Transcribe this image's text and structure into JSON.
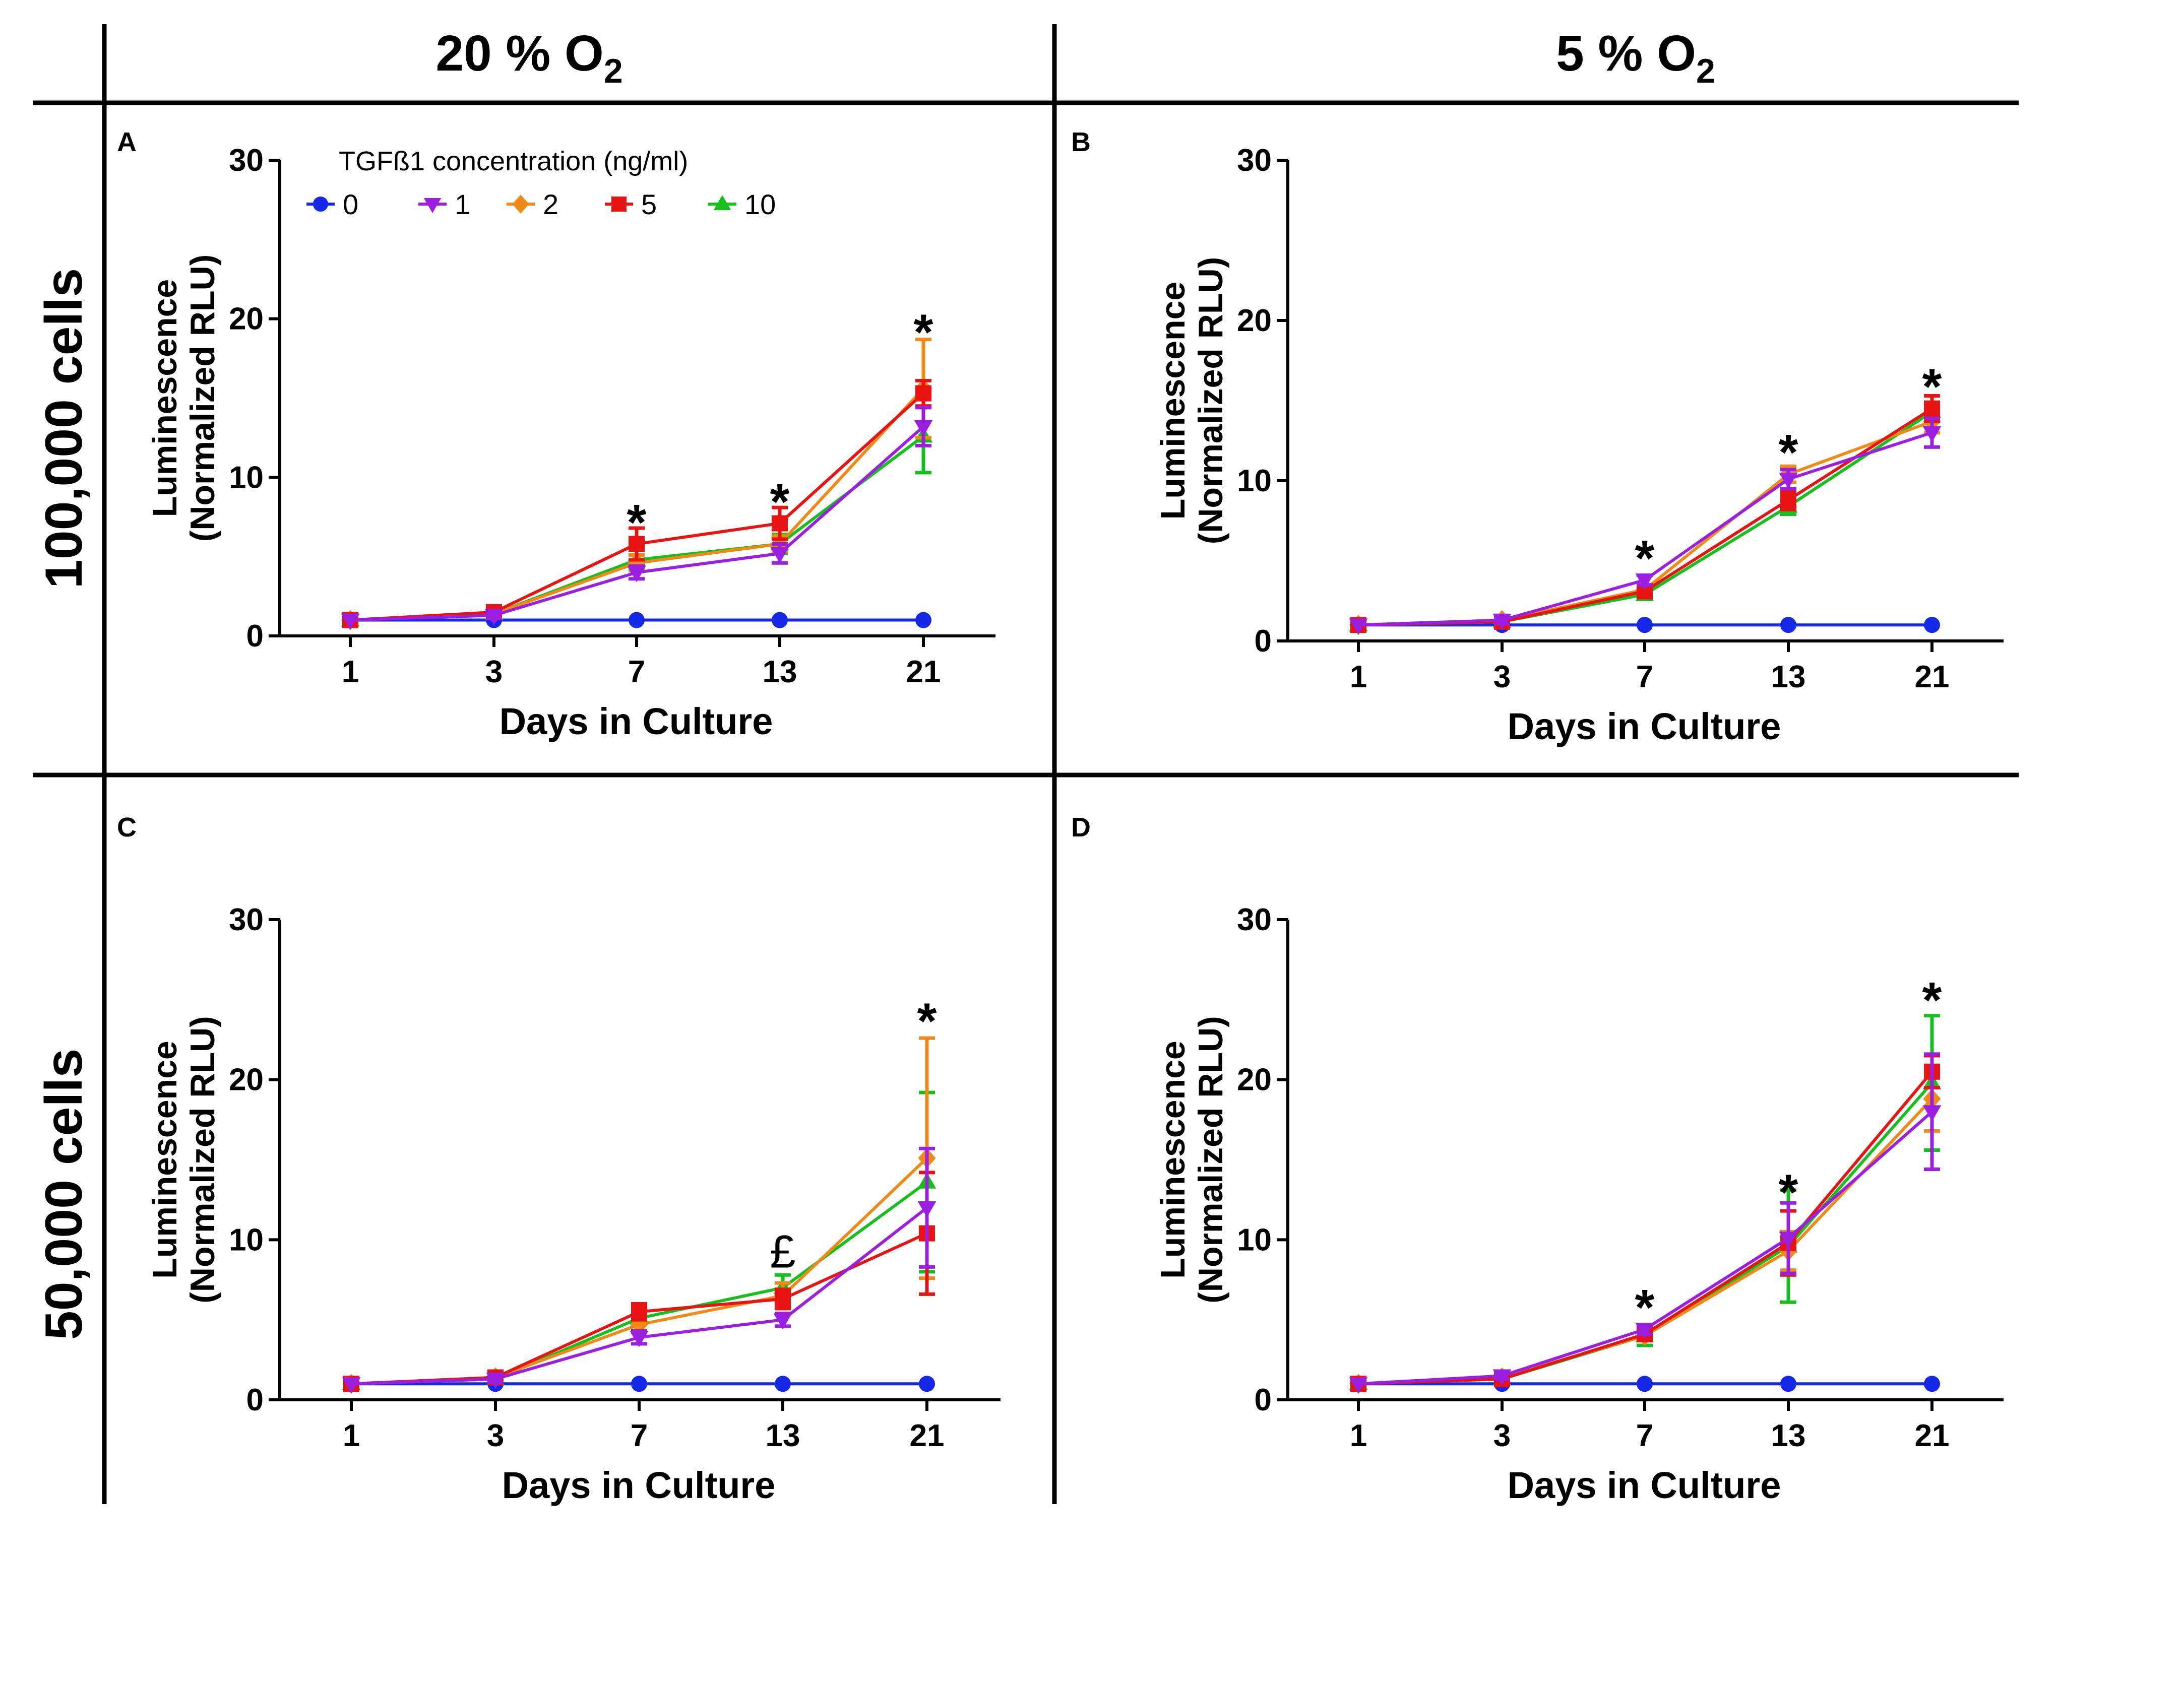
{
  "figure": {
    "col_headers": [
      {
        "main": "20 % O",
        "sub": "2"
      },
      {
        "main": "5 % O",
        "sub": "2"
      }
    ],
    "row_headers": [
      "100,000 cells",
      "50,000 cells"
    ]
  },
  "legend": {
    "title": "TGFß1 concentration (ng/ml)",
    "entries": [
      {
        "label": "0",
        "color": "#1428e6",
        "marker": "circle"
      },
      {
        "label": "1",
        "color": "#9b1fe0",
        "marker": "triangle-down"
      },
      {
        "label": "2",
        "color": "#f08a16",
        "marker": "diamond"
      },
      {
        "label": "5",
        "color": "#e81414",
        "marker": "square"
      },
      {
        "label": "10",
        "color": "#16c01c",
        "marker": "triangle-up"
      }
    ]
  },
  "chart_data": [
    {
      "type": "line",
      "panel": "A",
      "title": "",
      "xlabel": "Days in Culture",
      "ylabel": [
        "Luminescence",
        "(Normalized RLU)"
      ],
      "categories": [
        "1",
        "3",
        "7",
        "13",
        "21"
      ],
      "ylim": [
        0,
        30
      ],
      "yticks": [
        0,
        10,
        20,
        30
      ],
      "series": [
        {
          "name": "0",
          "values": [
            1,
            1,
            1,
            1,
            1
          ],
          "err": [
            0.1,
            0.1,
            0.1,
            0.1,
            0.1
          ]
        },
        {
          "name": "1",
          "values": [
            1,
            1.3,
            4,
            5.2,
            13.2
          ],
          "err": [
            0.1,
            0.2,
            0.4,
            0.6,
            1.2
          ]
        },
        {
          "name": "2",
          "values": [
            1,
            1.4,
            4.6,
            5.8,
            15.6
          ],
          "err": [
            0.1,
            0.2,
            0.5,
            0.5,
            3.1
          ]
        },
        {
          "name": "5",
          "values": [
            1,
            1.5,
            5.8,
            7.1,
            15.3
          ],
          "err": [
            0.1,
            0.2,
            1.0,
            1.0,
            0.8
          ]
        },
        {
          "name": "10",
          "values": [
            1,
            1.4,
            4.8,
            5.8,
            12.6
          ],
          "err": [
            0.1,
            0.2,
            0.6,
            0.6,
            2.3
          ]
        }
      ],
      "annotations": [
        {
          "text": "*",
          "x": "7",
          "y": 7.6
        },
        {
          "text": "*",
          "x": "13",
          "y": 8.9
        },
        {
          "text": "*",
          "x": "21",
          "y": 19.6
        }
      ]
    },
    {
      "type": "line",
      "panel": "B",
      "title": "",
      "xlabel": "Days in Culture",
      "ylabel": [
        "Luminescence",
        "(Normalized RLU)"
      ],
      "categories": [
        "1",
        "3",
        "7",
        "13",
        "21"
      ],
      "ylim": [
        0,
        30
      ],
      "yticks": [
        0,
        10,
        20,
        30
      ],
      "series": [
        {
          "name": "0",
          "values": [
            1,
            1,
            1,
            1,
            1
          ],
          "err": [
            0.1,
            0.1,
            0.1,
            0.1,
            0.1
          ]
        },
        {
          "name": "1",
          "values": [
            1,
            1.3,
            3.8,
            10.1,
            13
          ],
          "err": [
            0.1,
            0.2,
            0.3,
            0.6,
            0.9
          ]
        },
        {
          "name": "2",
          "values": [
            1,
            1.3,
            3.2,
            10.4,
            13.7
          ],
          "err": [
            0.1,
            0.2,
            0.3,
            0.5,
            0.7
          ]
        },
        {
          "name": "5",
          "values": [
            1,
            1.2,
            3.1,
            8.8,
            14.5
          ],
          "err": [
            0.1,
            0.2,
            0.3,
            0.6,
            0.8
          ]
        },
        {
          "name": "10",
          "values": [
            1,
            1.2,
            2.9,
            8.4,
            14.3
          ],
          "err": [
            0.1,
            0.2,
            0.3,
            0.5,
            0.6
          ]
        }
      ],
      "annotations": [
        {
          "text": "*",
          "x": "7",
          "y": 5.6
        },
        {
          "text": "*",
          "x": "13",
          "y": 12.2
        },
        {
          "text": "*",
          "x": "21",
          "y": 16.3
        }
      ]
    },
    {
      "type": "line",
      "panel": "C",
      "title": "",
      "xlabel": "Days in Culture",
      "ylabel": [
        "Luminescence",
        "(Normalized RLU)"
      ],
      "categories": [
        "1",
        "3",
        "7",
        "13",
        "21"
      ],
      "ylim": [
        0,
        30
      ],
      "yticks": [
        0,
        10,
        20,
        30
      ],
      "series": [
        {
          "name": "0",
          "values": [
            1,
            1,
            1,
            1,
            1
          ],
          "err": [
            0.1,
            0.1,
            0.1,
            0.1,
            0.1
          ]
        },
        {
          "name": "1",
          "values": [
            1,
            1.3,
            3.9,
            5,
            12
          ],
          "err": [
            0.1,
            0.2,
            0.4,
            0.4,
            3.7
          ]
        },
        {
          "name": "2",
          "values": [
            1,
            1.4,
            4.7,
            6.5,
            15.1
          ],
          "err": [
            0.1,
            0.2,
            0.5,
            0.8,
            7.5
          ]
        },
        {
          "name": "5",
          "values": [
            1,
            1.4,
            5.5,
            6.3,
            10.4
          ],
          "err": [
            0.1,
            0.2,
            0.5,
            0.6,
            3.8
          ]
        },
        {
          "name": "10",
          "values": [
            1,
            1.3,
            5.1,
            7,
            13.6
          ],
          "err": [
            0.1,
            0.2,
            0.4,
            0.8,
            5.6
          ]
        }
      ],
      "annotations": [
        {
          "text": "£",
          "x": "13",
          "y": 9.2
        },
        {
          "text": "*",
          "x": "21",
          "y": 24.1
        }
      ]
    },
    {
      "type": "line",
      "panel": "D",
      "title": "",
      "xlabel": "Days in Culture",
      "ylabel": [
        "Luminescence",
        "(Normalized RLU)"
      ],
      "categories": [
        "1",
        "3",
        "7",
        "13",
        "21"
      ],
      "ylim": [
        0,
        30
      ],
      "yticks": [
        0,
        10,
        20,
        30
      ],
      "series": [
        {
          "name": "0",
          "values": [
            1,
            1,
            1,
            1,
            1
          ],
          "err": [
            0.1,
            0.1,
            0.1,
            0.1,
            0.1
          ]
        },
        {
          "name": "1",
          "values": [
            1,
            1.5,
            4.4,
            10.1,
            18
          ],
          "err": [
            0.1,
            0.2,
            0.3,
            2.2,
            3.6
          ]
        },
        {
          "name": "2",
          "values": [
            1,
            1.4,
            4,
            9.3,
            18.8
          ],
          "err": [
            0.1,
            0.2,
            0.3,
            1.2,
            2.0
          ]
        },
        {
          "name": "5",
          "values": [
            1,
            1.3,
            4.1,
            9.8,
            20.5
          ],
          "err": [
            0.1,
            0.2,
            0.4,
            2.0,
            1.0
          ]
        },
        {
          "name": "10",
          "values": [
            1,
            1.3,
            4,
            9.6,
            19.8
          ],
          "err": [
            0.1,
            0.2,
            0.6,
            3.5,
            4.2
          ]
        }
      ],
      "annotations": [
        {
          "text": "*",
          "x": "7",
          "y": 6.2
        },
        {
          "text": "*",
          "x": "13",
          "y": 13.4
        },
        {
          "text": "*",
          "x": "21",
          "y": 25.4
        }
      ]
    }
  ]
}
